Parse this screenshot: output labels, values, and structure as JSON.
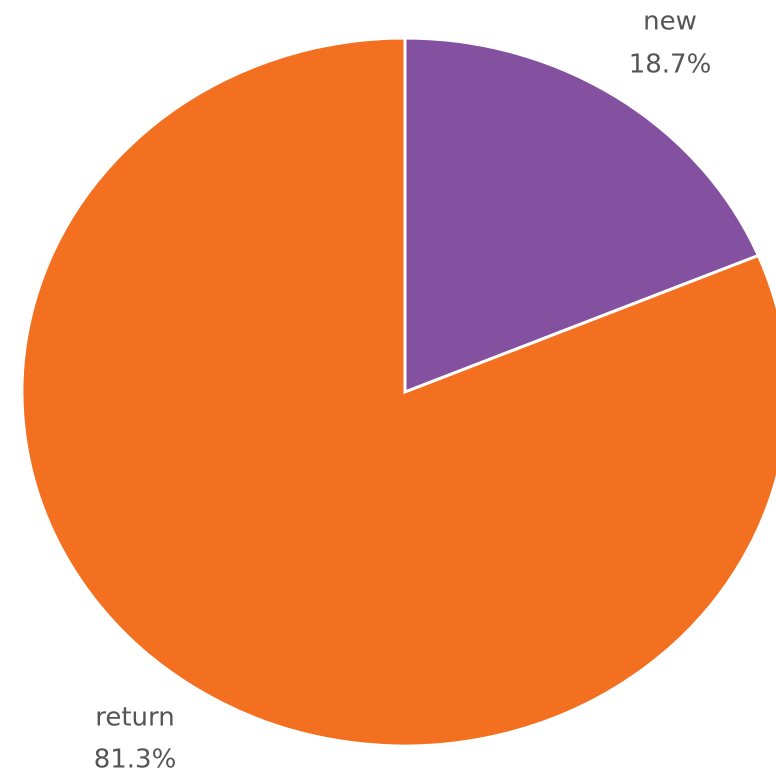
{
  "chart_data": {
    "type": "pie",
    "categories": [
      "new",
      "return"
    ],
    "values": [
      18.7,
      81.3
    ],
    "value_labels": [
      "18.7%",
      "81.3%"
    ],
    "colors": [
      "#8351a0",
      "#f37021"
    ]
  }
}
